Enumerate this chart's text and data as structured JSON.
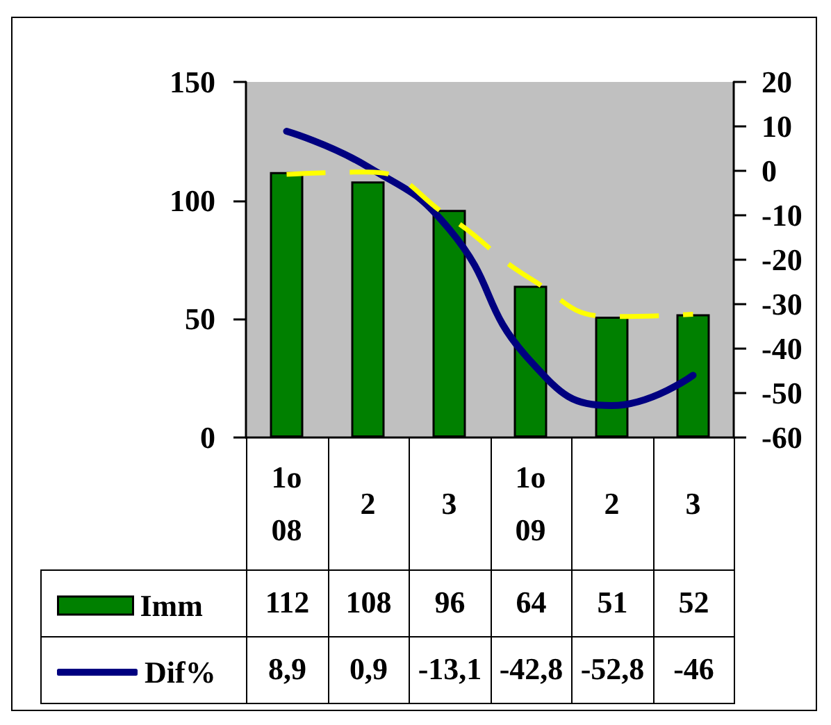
{
  "chart_data": {
    "type": "bar",
    "categories": [
      "1o\n08",
      "2",
      "3",
      "1o\n09",
      "2",
      "3"
    ],
    "series": [
      {
        "name": "Imm",
        "color": "#008000",
        "values": [
          112,
          108,
          96,
          64,
          51,
          52
        ],
        "value_labels": [
          "112",
          "108",
          "96",
          "64",
          "51",
          "52"
        ]
      },
      {
        "name": "Dif%",
        "type": "line",
        "axis": "y2",
        "color": "#000080",
        "values": [
          8.9,
          0.9,
          -13.1,
          -42.8,
          -52.8,
          -46
        ],
        "value_labels": [
          "8,9",
          "0,9",
          "-13,1",
          "-42,8",
          "-52,8",
          "-46"
        ]
      },
      {
        "type": "line",
        "color": "#ffff00",
        "line_style": "dashed",
        "values": [
          111,
          112,
          93,
          67,
          51,
          52
        ]
      }
    ],
    "ylim": [
      0,
      150
    ],
    "yticks": [
      0,
      50,
      100,
      150
    ],
    "y2lim": [
      -60,
      20
    ],
    "y2ticks": [
      -60,
      -50,
      -40,
      -30,
      -20,
      -10,
      0,
      10,
      20
    ],
    "legend": "bottom left"
  }
}
